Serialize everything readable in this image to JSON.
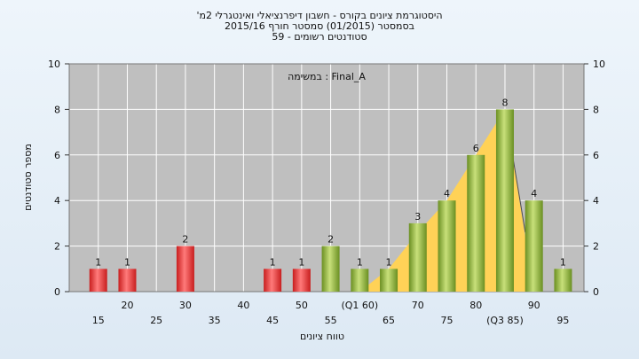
{
  "chart_data": {
    "type": "bar",
    "title_lines": [
      "'היסטוגרמת ציונים בקורס - חשבון דיפרנציאלי ואינטגרלי 2מ",
      "בסמסטר  (01/2015)  סמסטר חורף 2015/16",
      "סטודנטים רשומים - 59"
    ],
    "annotation": "במשימה : Final_A",
    "xlabel": "טווח ציונים",
    "ylabel": "מספר סטודנטים",
    "ylim": [
      0,
      10
    ],
    "yticks": [
      0,
      2,
      4,
      6,
      8,
      10
    ],
    "grid": true,
    "x_tick_labels": [
      {
        "x": 15,
        "label": "15",
        "row": 2
      },
      {
        "x": 20,
        "label": "20",
        "row": 1
      },
      {
        "x": 25,
        "label": "25",
        "row": 2
      },
      {
        "x": 30,
        "label": "30",
        "row": 1
      },
      {
        "x": 35,
        "label": "35",
        "row": 2
      },
      {
        "x": 40,
        "label": "40",
        "row": 1
      },
      {
        "x": 45,
        "label": "45",
        "row": 2
      },
      {
        "x": 50,
        "label": "50",
        "row": 1
      },
      {
        "x": 55,
        "label": "55",
        "row": 2
      },
      {
        "x": 60,
        "label": "(Q1 60)",
        "row": 1
      },
      {
        "x": 65,
        "label": "65",
        "row": 2
      },
      {
        "x": 70,
        "label": "70",
        "row": 1
      },
      {
        "x": 75,
        "label": "75",
        "row": 2
      },
      {
        "x": 80,
        "label": "80",
        "row": 1
      },
      {
        "x": 85,
        "label": "(Q3 85)",
        "row": 2
      },
      {
        "x": 90,
        "label": "90",
        "row": 1
      },
      {
        "x": 95,
        "label": "95",
        "row": 2
      }
    ],
    "bars": [
      {
        "x": 15,
        "value": 1,
        "color": "red"
      },
      {
        "x": 20,
        "value": 1,
        "color": "red"
      },
      {
        "x": 30,
        "value": 2,
        "color": "red"
      },
      {
        "x": 45,
        "value": 1,
        "color": "red"
      },
      {
        "x": 50,
        "value": 1,
        "color": "red"
      },
      {
        "x": 55,
        "value": 2,
        "color": "green"
      },
      {
        "x": 60,
        "value": 1,
        "color": "green"
      },
      {
        "x": 65,
        "value": 1,
        "color": "green"
      },
      {
        "x": 70,
        "value": 3,
        "color": "green"
      },
      {
        "x": 75,
        "value": 4,
        "color": "green"
      },
      {
        "x": 80,
        "value": 6,
        "color": "green"
      },
      {
        "x": 85,
        "value": 8,
        "color": "green"
      },
      {
        "x": 90,
        "value": 4,
        "color": "green"
      },
      {
        "x": 95,
        "value": 1,
        "color": "green"
      }
    ],
    "area_series": [
      {
        "x": 60,
        "y": 0
      },
      {
        "x": 65,
        "y": 1
      },
      {
        "x": 70,
        "y": 2.6
      },
      {
        "x": 75,
        "y": 4
      },
      {
        "x": 80,
        "y": 6
      },
      {
        "x": 85,
        "y": 8
      },
      {
        "x": 90,
        "y": 0
      }
    ],
    "area_line": [
      {
        "x": 85,
        "y": 8
      },
      {
        "x": 88.5,
        "y": 2.6
      }
    ],
    "colors": {
      "plot_bg": "#bfbfbf",
      "grid": "#ffffff",
      "red_light": "#ff7a7a",
      "red_dark": "#c81e1e",
      "green_light": "#c8e07a",
      "green_dark": "#6a8f22",
      "area_fill": "#ffd257",
      "area_line": "#4d4d4d"
    }
  }
}
